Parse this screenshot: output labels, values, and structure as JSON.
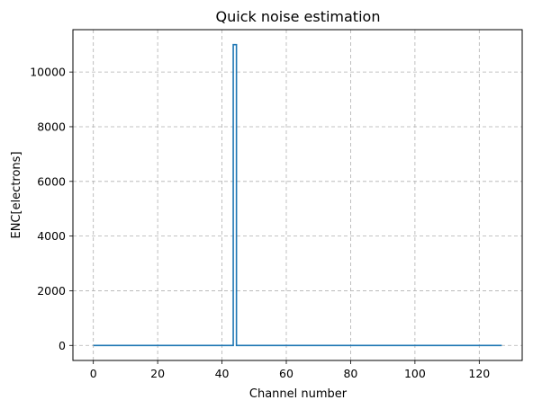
{
  "chart_data": {
    "type": "line",
    "title": "Quick noise estimation",
    "xlabel": "Channel number",
    "ylabel": "ENC[electrons]",
    "xlim": [
      -6.35,
      133.35
    ],
    "ylim": [
      -550,
      11550
    ],
    "xticks": [
      0,
      20,
      40,
      60,
      80,
      100,
      120
    ],
    "yticks": [
      0,
      2000,
      4000,
      6000,
      8000,
      10000
    ],
    "grid": true,
    "grid_style": "dashed",
    "drawstyle": "steps",
    "series": [
      {
        "color": "#1f77b4",
        "x": [
          0,
          43.5,
          43.5,
          44.5,
          44.5,
          127
        ],
        "y": [
          0,
          0,
          11000,
          11000,
          0,
          0
        ]
      }
    ]
  }
}
